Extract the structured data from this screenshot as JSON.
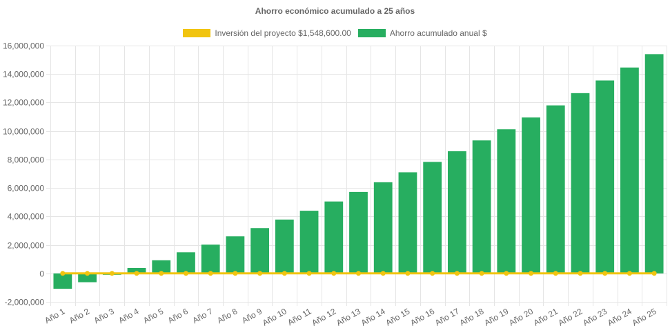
{
  "colors": {
    "investment": "#f1c40f",
    "savings": "#27ae60",
    "grid": "#e5e5e5",
    "text": "#666666"
  },
  "chart_data": {
    "type": "bar",
    "title": "Ahorro económico acumulado a 25 años",
    "legend_position": "top",
    "grid": true,
    "categories": [
      "Año 1",
      "Año 2",
      "Año 3",
      "Año 4",
      "Año 5",
      "Año 6",
      "Año 7",
      "Año 8",
      "Año 9",
      "Año 10",
      "Año 11",
      "Año 12",
      "Año 13",
      "Año 14",
      "Año 15",
      "Año 16",
      "Año 17",
      "Año 18",
      "Año 19",
      "Año 20",
      "Año 21",
      "Año 22",
      "Año 23",
      "Año 24",
      "Año 25"
    ],
    "ylim": [
      -2000000,
      16000000
    ],
    "yticks": [
      -2000000,
      0,
      2000000,
      4000000,
      6000000,
      8000000,
      10000000,
      12000000,
      14000000,
      16000000
    ],
    "ytick_labels": [
      "-2,000,000",
      "0",
      "2,000,000",
      "4,000,000",
      "6,000,000",
      "8,000,000",
      "10,000,000",
      "12,000,000",
      "14,000,000",
      "16,000,000"
    ],
    "series": [
      {
        "name": "Inversión del proyecto $1,548,600.00",
        "kind": "line",
        "color": "#f1c40f",
        "values": [
          0,
          0,
          0,
          0,
          0,
          0,
          0,
          0,
          0,
          0,
          0,
          0,
          0,
          0,
          0,
          0,
          0,
          0,
          0,
          0,
          0,
          0,
          0,
          0,
          0
        ]
      },
      {
        "name": "Ahorro acumulado anual $",
        "kind": "bar",
        "color": "#27ae60",
        "values": [
          -1080000,
          -620000,
          -100000,
          380000,
          920000,
          1480000,
          2020000,
          2600000,
          3180000,
          3780000,
          4400000,
          5050000,
          5720000,
          6400000,
          7100000,
          7830000,
          8580000,
          9340000,
          10120000,
          10950000,
          11800000,
          12660000,
          13550000,
          14460000,
          15400000
        ]
      }
    ]
  }
}
